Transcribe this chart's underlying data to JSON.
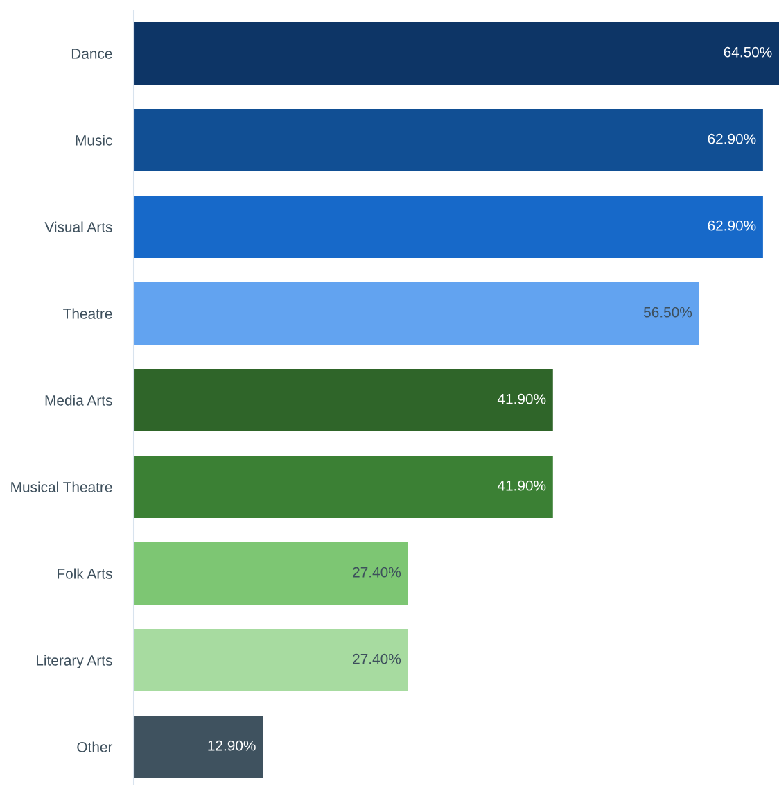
{
  "chart_data": {
    "type": "bar",
    "orientation": "horizontal",
    "categories": [
      "Dance",
      "Music",
      "Visual Arts",
      "Theatre",
      "Media Arts",
      "Musical Theatre",
      "Folk Arts",
      "Literary Arts",
      "Other"
    ],
    "values": [
      64.5,
      62.9,
      62.9,
      56.5,
      41.9,
      41.9,
      27.4,
      27.4,
      12.9
    ],
    "colors": [
      "#0d3566",
      "#114f94",
      "#1769c9",
      "#62a3f0",
      "#2f6529",
      "#3b8034",
      "#7dc673",
      "#a7dba0",
      "#3f525f"
    ],
    "value_labels": [
      "64.50%",
      "62.90%",
      "62.90%",
      "56.50%",
      "41.90%",
      "41.90%",
      "27.40%",
      "27.40%",
      "12.90%"
    ],
    "grid": false,
    "legend": false
  }
}
